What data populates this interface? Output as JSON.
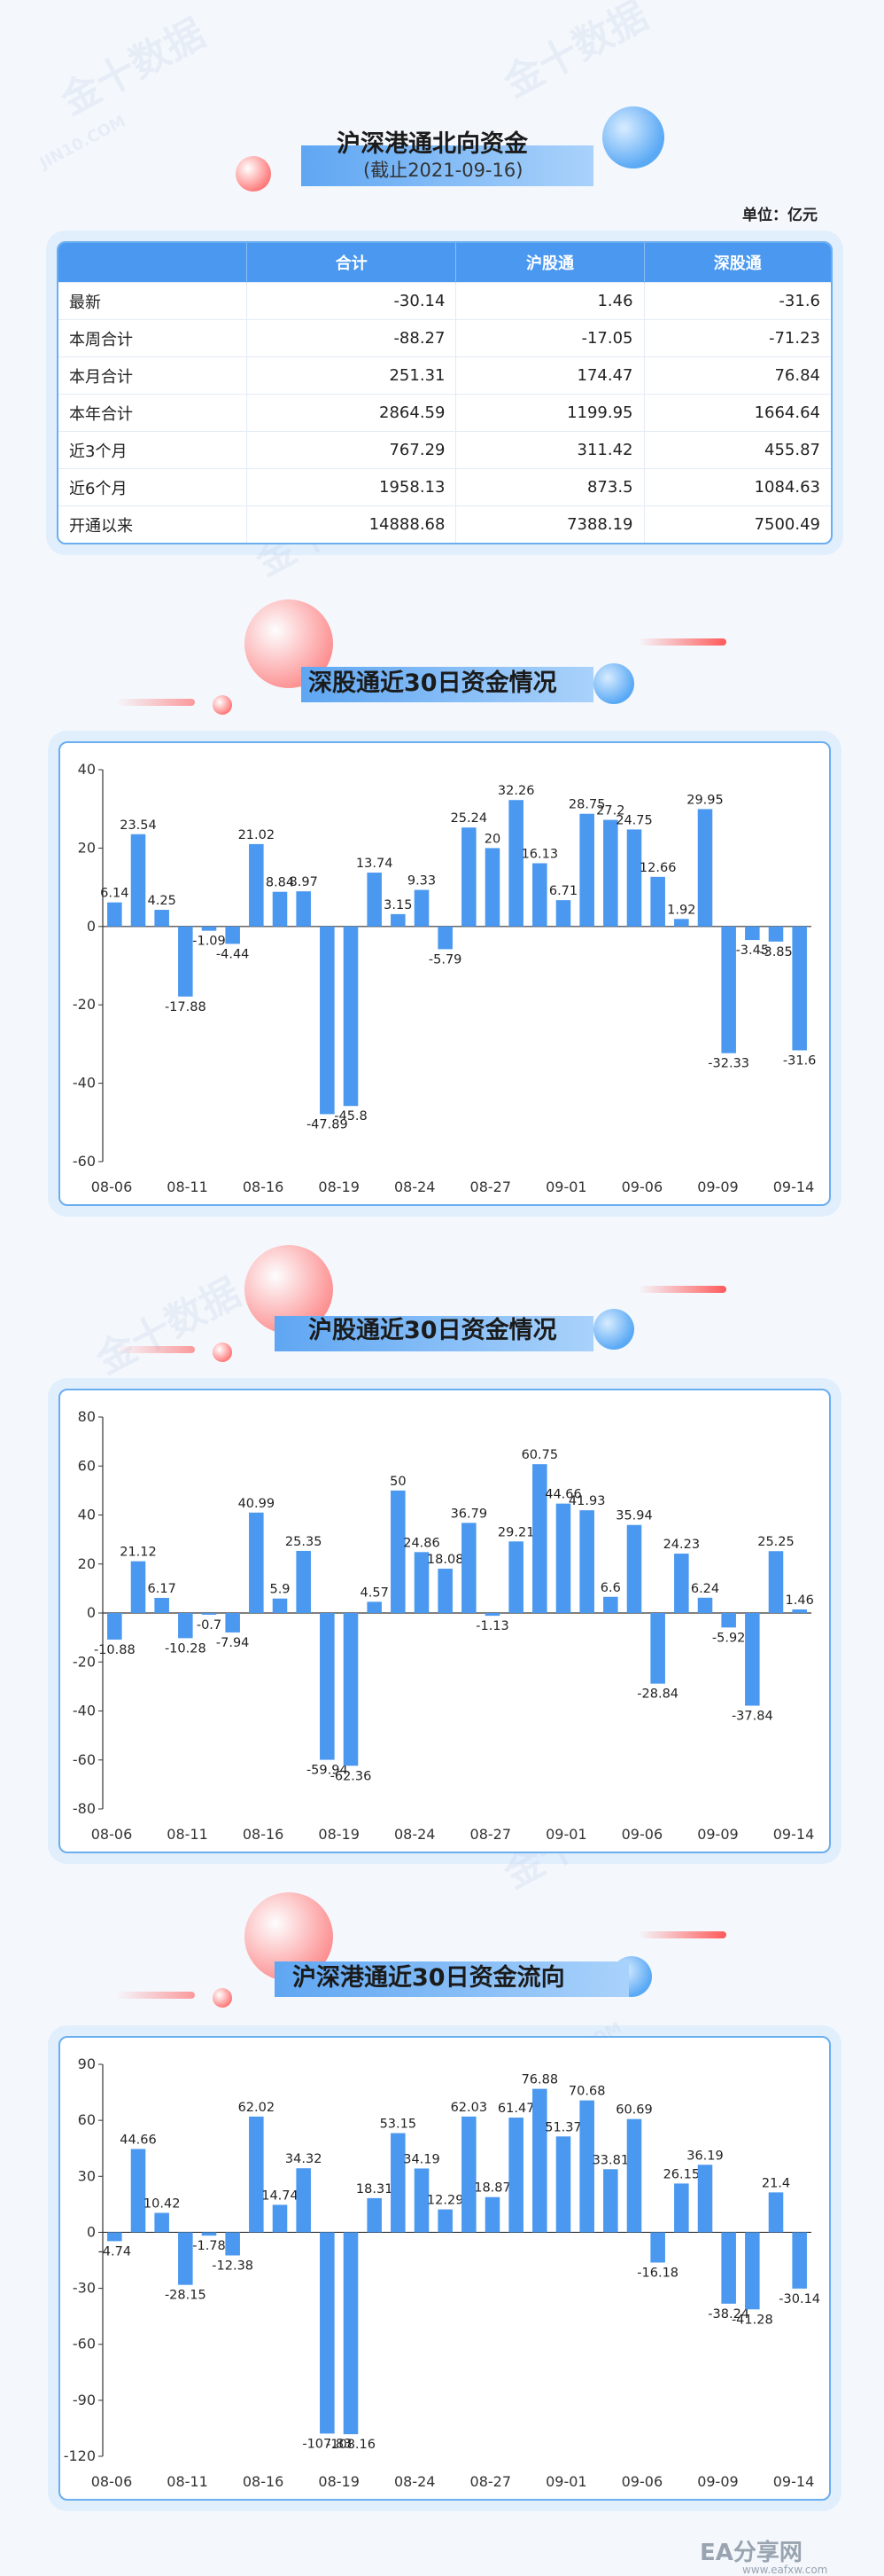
{
  "header": {
    "title": "沪深港通北向资金",
    "subtitle": "(截止2021-09-16)",
    "unit": "单位：亿元"
  },
  "table": {
    "columns": [
      "",
      "合计",
      "沪股通",
      "深股通"
    ],
    "rows": [
      {
        "label": "最新",
        "total": "-30.14",
        "sh": "1.46",
        "sz": "-31.6"
      },
      {
        "label": "本周合计",
        "total": "-88.27",
        "sh": "-17.05",
        "sz": "-71.23"
      },
      {
        "label": "本月合计",
        "total": "251.31",
        "sh": "174.47",
        "sz": "76.84"
      },
      {
        "label": "本年合计",
        "total": "2864.59",
        "sh": "1199.95",
        "sz": "1664.64"
      },
      {
        "label": "近3个月",
        "total": "767.29",
        "sh": "311.42",
        "sz": "455.87"
      },
      {
        "label": "近6个月",
        "total": "1958.13",
        "sh": "873.5",
        "sz": "1084.63"
      },
      {
        "label": "开通以来",
        "total": "14888.68",
        "sh": "7388.19",
        "sz": "7500.49"
      }
    ]
  },
  "watermark_text": "金十数据",
  "watermark_sub": "JIN10.COM",
  "footer_logo": "EA分享网",
  "footer_logo_url": "www.eafxw.com",
  "chart_data": [
    {
      "type": "bar",
      "title": "深股通近30日资金情况",
      "x_tick_labels": [
        "08-06",
        "08-11",
        "08-16",
        "08-19",
        "08-24",
        "08-27",
        "09-01",
        "09-06",
        "09-09",
        "09-14"
      ],
      "values": [
        6.14,
        23.54,
        4.25,
        -17.88,
        -1.09,
        -4.44,
        21.02,
        8.84,
        8.97,
        -47.89,
        -45.8,
        13.74,
        3.15,
        9.33,
        -5.79,
        25.24,
        20,
        32.26,
        16.13,
        6.71,
        28.75,
        27.2,
        24.75,
        12.66,
        1.92,
        29.95,
        -32.33,
        -3.45,
        -3.85,
        -31.6
      ],
      "ylim": [
        -60,
        40
      ],
      "yticks": [
        40,
        20,
        0,
        -20,
        -40,
        -60
      ],
      "color": "#4a98ef"
    },
    {
      "type": "bar",
      "title": "沪股通近30日资金情况",
      "x_tick_labels": [
        "08-06",
        "08-11",
        "08-16",
        "08-19",
        "08-24",
        "08-27",
        "09-01",
        "09-06",
        "09-09",
        "09-14"
      ],
      "values": [
        -10.88,
        21.12,
        6.17,
        -10.28,
        -0.7,
        -7.94,
        40.99,
        5.9,
        25.35,
        -59.94,
        -62.36,
        4.57,
        50,
        24.86,
        18.08,
        36.79,
        -1.13,
        29.21,
        60.75,
        44.66,
        41.93,
        6.6,
        35.94,
        -28.84,
        24.23,
        6.24,
        -5.92,
        -37.84,
        25.25,
        1.46
      ],
      "ylim": [
        -80,
        80
      ],
      "yticks": [
        80,
        60,
        40,
        20,
        0,
        -20,
        -40,
        -60,
        -80
      ],
      "color": "#4a98ef"
    },
    {
      "type": "bar",
      "title": "沪深港通近30日资金流向",
      "x_tick_labels": [
        "08-06",
        "08-11",
        "08-16",
        "08-19",
        "08-24",
        "08-27",
        "09-01",
        "09-06",
        "09-09",
        "09-14"
      ],
      "values": [
        -4.74,
        44.66,
        10.42,
        -28.15,
        -1.78,
        -12.38,
        62.02,
        14.74,
        34.32,
        -107.83,
        -108.16,
        18.31,
        53.15,
        34.19,
        12.29,
        62.03,
        18.87,
        61.47,
        76.88,
        51.37,
        70.68,
        33.81,
        60.69,
        -16.18,
        26.15,
        36.19,
        -38.24,
        -41.28,
        21.4,
        -30.14
      ],
      "ylim": [
        -120,
        90
      ],
      "yticks": [
        90,
        60,
        30,
        0,
        -30,
        -60,
        -90,
        -120
      ],
      "color": "#4a98ef"
    }
  ]
}
